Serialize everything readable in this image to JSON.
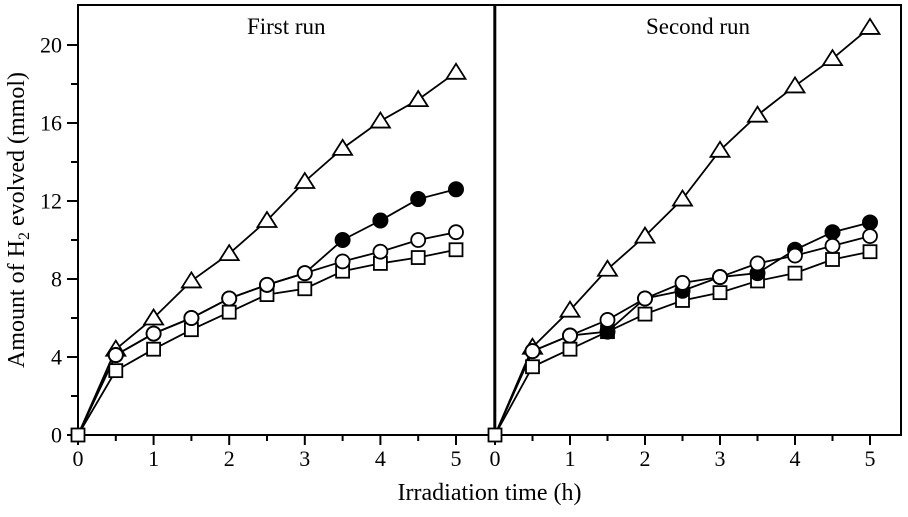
{
  "figure": {
    "background": "#ffffff",
    "line_color": "#000000",
    "marker_fill_open": "#ffffff",
    "marker_fill_filled": "#000000"
  },
  "chart_data": {
    "type": "line",
    "xlabel": "Irradiation time (h)",
    "ylabel": "Amount of H2 evolved (mmol)",
    "ylabel_parts": {
      "pre": "Amount of H",
      "sub": "2",
      "post": " evolved (mmol)"
    },
    "xlim": [
      0,
      5.5
    ],
    "ylim": [
      0,
      22
    ],
    "grid": false,
    "legend": "none",
    "yticks_major": [
      0,
      4,
      8,
      12,
      16,
      20
    ],
    "yticks_minor": [
      2,
      6,
      10,
      14,
      18
    ],
    "xticks_major": [
      0,
      1,
      2,
      3,
      4,
      5
    ],
    "xticks_minor": [
      0.5,
      1.5,
      2.5,
      3.5,
      4.5
    ],
    "x": [
      0,
      0.5,
      1,
      1.5,
      2,
      2.5,
      3,
      3.5,
      4,
      4.5,
      5
    ],
    "panels": [
      {
        "title": "First run",
        "series": [
          {
            "name": "open-triangle",
            "marker": "triangle-open",
            "values": [
              0,
              4.4,
              6.0,
              7.9,
              9.3,
              11.0,
              13.0,
              14.7,
              16.1,
              17.2,
              18.6
            ]
          },
          {
            "name": "filled-circle",
            "marker": "circle-filled",
            "values": [
              0,
              4.1,
              5.2,
              6.0,
              7.0,
              7.7,
              8.3,
              10.0,
              11.0,
              12.1,
              12.6
            ]
          },
          {
            "name": "open-circle",
            "marker": "circle-open",
            "values": [
              0,
              4.1,
              5.2,
              6.0,
              7.0,
              7.7,
              8.3,
              8.9,
              9.4,
              10.0,
              10.4
            ]
          },
          {
            "name": "open-square",
            "marker": "square-open",
            "values": [
              0,
              3.3,
              4.4,
              5.4,
              6.3,
              7.2,
              7.5,
              8.4,
              8.8,
              9.1,
              9.5
            ]
          }
        ]
      },
      {
        "title": "Second run",
        "series": [
          {
            "name": "open-triangle",
            "marker": "triangle-open",
            "values": [
              0,
              4.5,
              6.4,
              8.5,
              10.2,
              12.1,
              14.6,
              16.4,
              17.9,
              19.3,
              20.9
            ]
          },
          {
            "name": "filled-circle",
            "marker": "circle-filled",
            "values": [
              0,
              4.3,
              5.1,
              5.3,
              7.0,
              7.4,
              8.1,
              8.3,
              9.5,
              10.4,
              10.9
            ]
          },
          {
            "name": "open-circle",
            "marker": "circle-open",
            "values": [
              0,
              4.3,
              5.1,
              5.9,
              7.0,
              7.8,
              8.1,
              8.8,
              9.2,
              9.7,
              10.2
            ]
          },
          {
            "name": "open-square",
            "marker": "square-open",
            "values": [
              0,
              3.5,
              4.4,
              5.3,
              6.2,
              6.9,
              7.3,
              7.9,
              8.3,
              9.0,
              9.4
            ]
          }
        ]
      }
    ]
  }
}
